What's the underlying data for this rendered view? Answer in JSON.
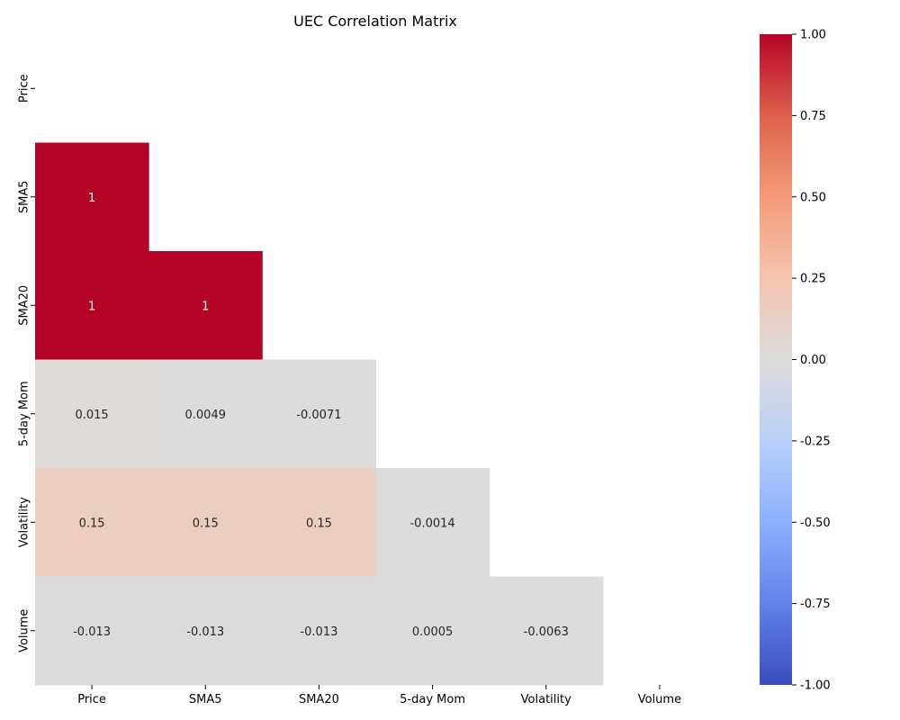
{
  "chart_data": {
    "type": "heatmap",
    "title": "UEC Correlation Matrix",
    "xlabel": "",
    "ylabel": "",
    "x_categories": [
      "Price",
      "SMA5",
      "SMA20",
      "5-day Mom",
      "Volatility",
      "Volume"
    ],
    "y_categories": [
      "Price",
      "SMA5",
      "SMA20",
      "5-day Mom",
      "Volatility",
      "Volume"
    ],
    "mask": "upper-triangle-including-diagonal",
    "cells": [
      {
        "row": "SMA5",
        "col": "Price",
        "value": 1,
        "label": "1"
      },
      {
        "row": "SMA20",
        "col": "Price",
        "value": 1,
        "label": "1"
      },
      {
        "row": "SMA20",
        "col": "SMA5",
        "value": 1,
        "label": "1"
      },
      {
        "row": "5-day Mom",
        "col": "Price",
        "value": 0.015,
        "label": "0.015"
      },
      {
        "row": "5-day Mom",
        "col": "SMA5",
        "value": 0.0049,
        "label": "0.0049"
      },
      {
        "row": "5-day Mom",
        "col": "SMA20",
        "value": -0.0071,
        "label": "-0.0071"
      },
      {
        "row": "Volatility",
        "col": "Price",
        "value": 0.15,
        "label": "0.15"
      },
      {
        "row": "Volatility",
        "col": "SMA5",
        "value": 0.15,
        "label": "0.15"
      },
      {
        "row": "Volatility",
        "col": "SMA20",
        "value": 0.15,
        "label": "0.15"
      },
      {
        "row": "Volatility",
        "col": "5-day Mom",
        "value": -0.0014,
        "label": "-0.0014"
      },
      {
        "row": "Volume",
        "col": "Price",
        "value": -0.013,
        "label": "-0.013"
      },
      {
        "row": "Volume",
        "col": "SMA5",
        "value": -0.013,
        "label": "-0.013"
      },
      {
        "row": "Volume",
        "col": "SMA20",
        "value": -0.013,
        "label": "-0.013"
      },
      {
        "row": "Volume",
        "col": "5-day Mom",
        "value": 0.0005,
        "label": "0.0005"
      },
      {
        "row": "Volume",
        "col": "Volatility",
        "value": -0.0063,
        "label": "-0.0063"
      }
    ],
    "colormap": "coolwarm",
    "colorbar": {
      "range": [
        -1,
        1
      ],
      "ticks": [
        "-1.00",
        "-0.75",
        "-0.50",
        "-0.25",
        "0.00",
        "0.25",
        "0.50",
        "0.75",
        "1.00"
      ]
    },
    "grid": false,
    "legend": "colorbar-right"
  }
}
